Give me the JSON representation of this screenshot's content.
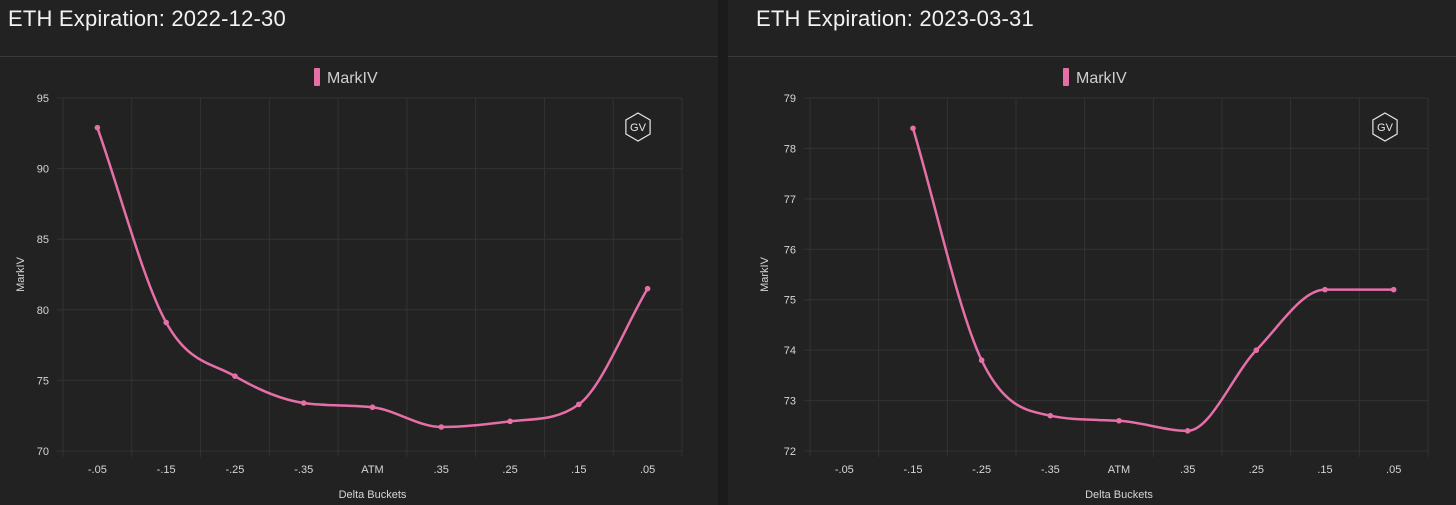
{
  "colors": {
    "series": "#e66fa8",
    "grid": "#333333",
    "background": "#222222"
  },
  "panels": [
    {
      "title": "ETH Expiration: 2022-12-30",
      "logo": "GV"
    },
    {
      "title": "ETH Expiration: 2023-03-31",
      "logo": "GV"
    }
  ],
  "chart_data": [
    {
      "type": "line",
      "categories": [
        "-.05",
        "-.15",
        "-.25",
        "-.35",
        "ATM",
        ".35",
        ".25",
        ".15",
        ".05"
      ],
      "series": [
        {
          "name": "MarkIV",
          "values": [
            92.9,
            79.1,
            75.3,
            73.4,
            73.1,
            71.7,
            72.1,
            73.3,
            81.5
          ]
        }
      ],
      "xlabel": "Delta Buckets",
      "ylabel": "MarkIV",
      "ylim": [
        70,
        95
      ],
      "yticks": [
        70,
        75,
        80,
        85,
        90,
        95
      ],
      "legend": "top-center",
      "grid": true
    },
    {
      "type": "line",
      "categories": [
        "-.05",
        "-.15",
        "-.25",
        "-.35",
        "ATM",
        ".35",
        ".25",
        ".15",
        ".05"
      ],
      "series": [
        {
          "name": "MarkIV",
          "values": [
            null,
            78.4,
            73.8,
            72.7,
            72.6,
            72.4,
            74.0,
            75.2,
            75.2
          ]
        }
      ],
      "xlabel": "Delta Buckets",
      "ylabel": "MarkIV",
      "ylim": [
        72,
        79
      ],
      "yticks": [
        72,
        73,
        74,
        75,
        76,
        77,
        78,
        79
      ],
      "legend": "top-center",
      "grid": true
    }
  ]
}
